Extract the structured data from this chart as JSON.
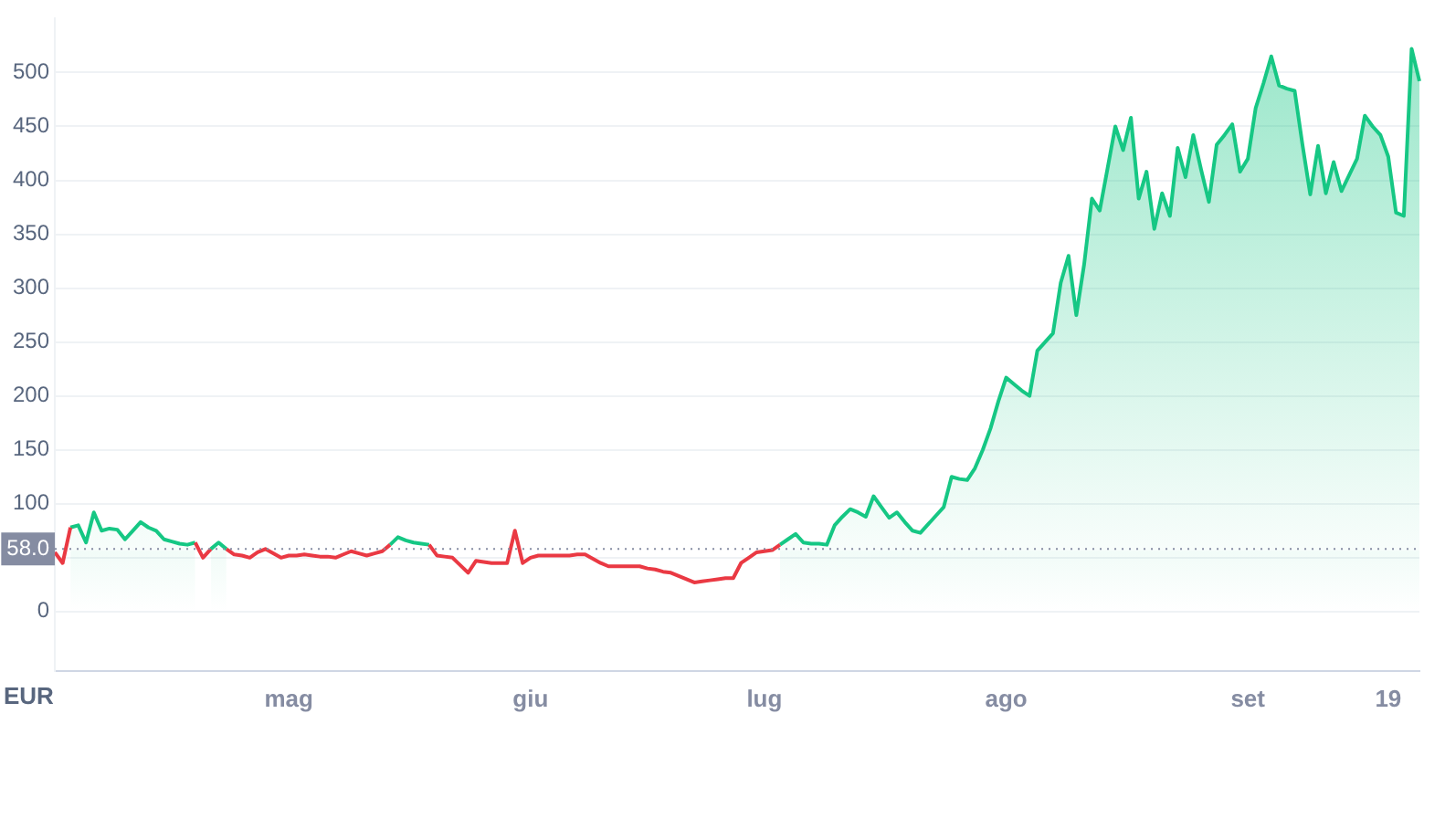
{
  "chart_data": {
    "type": "area",
    "xlabel": "EUR",
    "categories": [
      null,
      null,
      null,
      null,
      null,
      null,
      null,
      null,
      null,
      null,
      null,
      null,
      null,
      null,
      null,
      null,
      null,
      null,
      null,
      null,
      null,
      null,
      null,
      null,
      null,
      null,
      null,
      null,
      null,
      null,
      "mag",
      null,
      null,
      null,
      null,
      null,
      null,
      null,
      null,
      null,
      null,
      null,
      null,
      null,
      null,
      null,
      null,
      null,
      null,
      null,
      null,
      null,
      null,
      null,
      null,
      null,
      null,
      null,
      null,
      null,
      null,
      "giu",
      null,
      null,
      null,
      null,
      null,
      null,
      null,
      null,
      null,
      null,
      null,
      null,
      null,
      null,
      null,
      null,
      null,
      null,
      null,
      null,
      null,
      null,
      null,
      null,
      null,
      null,
      null,
      null,
      null,
      "lug",
      null,
      null,
      null,
      null,
      null,
      null,
      null,
      null,
      null,
      null,
      null,
      null,
      null,
      null,
      null,
      null,
      null,
      null,
      null,
      null,
      null,
      null,
      null,
      null,
      null,
      null,
      null,
      null,
      null,
      null,
      "ago",
      null,
      null,
      null,
      null,
      null,
      null,
      null,
      null,
      null,
      null,
      null,
      null,
      null,
      null,
      null,
      null,
      null,
      null,
      null,
      null,
      null,
      null,
      null,
      null,
      null,
      null,
      null,
      null,
      null,
      null,
      "set",
      null,
      null,
      null,
      null,
      null,
      null,
      null,
      null,
      null,
      null,
      null,
      null,
      null,
      null,
      null,
      null,
      null,
      "19",
      null,
      null,
      null,
      null
    ],
    "series": [
      {
        "color": "#16c784",
        "values": [
          null,
          null,
          78,
          80,
          64,
          92,
          75,
          77,
          76,
          67,
          75,
          83,
          78,
          75,
          67,
          65,
          63,
          62,
          64,
          null,
          null,
          null,
          null,
          null,
          null,
          null,
          null,
          null,
          null,
          null,
          null,
          null,
          null,
          null,
          null,
          null,
          null,
          null,
          null,
          null,
          null,
          null,
          null,
          null,
          null,
          null,
          null,
          null,
          null,
          null,
          null,
          null,
          null,
          null,
          null,
          null,
          null,
          null,
          null,
          null,
          null,
          null,
          null,
          null,
          null,
          null,
          null,
          null,
          null,
          null,
          null,
          null,
          null,
          null,
          null,
          null,
          null,
          null,
          null,
          null,
          null,
          null,
          null,
          null,
          null,
          null,
          null,
          null,
          null,
          null,
          null,
          null,
          null,
          null,
          null,
          null,
          null,
          null,
          null,
          null,
          null,
          null,
          null,
          null,
          null,
          null,
          null,
          null,
          null,
          null,
          null,
          null,
          null,
          null,
          null,
          null,
          null,
          null,
          null,
          null,
          null,
          null,
          null,
          null,
          null,
          null,
          null,
          null,
          null,
          null,
          null,
          null,
          null,
          null,
          null,
          null,
          null,
          null,
          null,
          null,
          null,
          null,
          null,
          null,
          null,
          null,
          null,
          null,
          null,
          null,
          null,
          null,
          null,
          null,
          null,
          null,
          null,
          null,
          null,
          null,
          null,
          null,
          null,
          null,
          null,
          null,
          null,
          null,
          null,
          null,
          null,
          null,
          null,
          null,
          null,
          null
        ]
      },
      {
        "color": "#16c784",
        "values": [
          null,
          null,
          null,
          null,
          null,
          null,
          null,
          null,
          null,
          null,
          null,
          null,
          null,
          null,
          null,
          null,
          null,
          null,
          null,
          null,
          58,
          64,
          58,
          null,
          null,
          null,
          null,
          null,
          null,
          null,
          null,
          null,
          null,
          null,
          null,
          null,
          null,
          null,
          null,
          null,
          null,
          null,
          null,
          null,
          null,
          null,
          null,
          null,
          null,
          null,
          null,
          null,
          null,
          null,
          null,
          null,
          null,
          null,
          null,
          null,
          null,
          null,
          null,
          null,
          null,
          null,
          null,
          null,
          null,
          null,
          null,
          null,
          null,
          null,
          null,
          null,
          null,
          null,
          null,
          null,
          null,
          null,
          null,
          null,
          null,
          null,
          null,
          null,
          null,
          null,
          null,
          null,
          null,
          null,
          null,
          null,
          null,
          null,
          null,
          null,
          null,
          null,
          null,
          null,
          null,
          null,
          null,
          null,
          null,
          null,
          null,
          null,
          null,
          null,
          null,
          null,
          null,
          null,
          null,
          null,
          null,
          null,
          null,
          null,
          null,
          null,
          null,
          null,
          null,
          null,
          null,
          null,
          null,
          null,
          null,
          null,
          null,
          null,
          null,
          null,
          null,
          null,
          null,
          null,
          null,
          null,
          null,
          null,
          null,
          null,
          null,
          null,
          null,
          null,
          null,
          null,
          null,
          null,
          null,
          null,
          null,
          null,
          null,
          null,
          null,
          null,
          null,
          null,
          null,
          null,
          null,
          null,
          null,
          null,
          null,
          null
        ]
      },
      {
        "type": "line",
        "color": "#16c784",
        "values": [
          null,
          null,
          null,
          null,
          null,
          null,
          null,
          null,
          null,
          null,
          null,
          null,
          null,
          null,
          null,
          null,
          null,
          null,
          null,
          null,
          null,
          null,
          null,
          null,
          null,
          null,
          null,
          null,
          null,
          null,
          null,
          null,
          null,
          null,
          null,
          null,
          null,
          null,
          null,
          null,
          null,
          null,
          null,
          62,
          69,
          66,
          64,
          63,
          62,
          null,
          null,
          null,
          null,
          null,
          null,
          null,
          null,
          null,
          null,
          null,
          null,
          null,
          null,
          null,
          null,
          null,
          null,
          null,
          null,
          null,
          null,
          null,
          null,
          null,
          null,
          null,
          null,
          null,
          null,
          null,
          null,
          null,
          null,
          null,
          null,
          null,
          null,
          null,
          null,
          null,
          null,
          null,
          null,
          null,
          null,
          null,
          null,
          null,
          null,
          null,
          null,
          null,
          null,
          null,
          null,
          null,
          null,
          null,
          null,
          null,
          null,
          null,
          null,
          null,
          null,
          null,
          null,
          null,
          null,
          null,
          null,
          null,
          null,
          null,
          null,
          null,
          null,
          null,
          null,
          null,
          null,
          null,
          null,
          null,
          null,
          null,
          null,
          null,
          null,
          null,
          null,
          null,
          null,
          null,
          null,
          null,
          null,
          null,
          null,
          null,
          null,
          null,
          null,
          null,
          null,
          null,
          null,
          null,
          null,
          null,
          null,
          null,
          null,
          null,
          null,
          null,
          null,
          null,
          null,
          null,
          null,
          null,
          null,
          null,
          null,
          null
        ]
      },
      {
        "color": "#16c784",
        "values": [
          null,
          null,
          null,
          null,
          null,
          null,
          null,
          null,
          null,
          null,
          null,
          null,
          null,
          null,
          null,
          null,
          null,
          null,
          null,
          null,
          null,
          null,
          null,
          null,
          null,
          null,
          null,
          null,
          null,
          null,
          null,
          null,
          null,
          null,
          null,
          null,
          null,
          null,
          null,
          null,
          null,
          null,
          null,
          null,
          null,
          null,
          null,
          null,
          null,
          null,
          null,
          null,
          null,
          null,
          null,
          null,
          null,
          null,
          null,
          null,
          null,
          null,
          null,
          null,
          null,
          null,
          null,
          null,
          null,
          null,
          null,
          null,
          null,
          null,
          null,
          null,
          null,
          null,
          null,
          null,
          null,
          null,
          null,
          null,
          null,
          null,
          null,
          null,
          null,
          null,
          null,
          null,
          null,
          62,
          67,
          72,
          64,
          63,
          63,
          62,
          80,
          88,
          95,
          92,
          88,
          107,
          97,
          87,
          92,
          83,
          75,
          73,
          81,
          89,
          97,
          125,
          123,
          122,
          133,
          150,
          170,
          195,
          217,
          211,
          205,
          200,
          242,
          250,
          258,
          305,
          330,
          275,
          322,
          383,
          372,
          411,
          450,
          428,
          458,
          383,
          408,
          355,
          388,
          367,
          430,
          403,
          442,
          410,
          380,
          433,
          442,
          452,
          408,
          420,
          467,
          490,
          515,
          488,
          485,
          483,
          433,
          387,
          432,
          388,
          417,
          390,
          405,
          420,
          460,
          450,
          442,
          422,
          370,
          367,
          522,
          492
        ]
      },
      {
        "type": "line",
        "color": "#ea3943",
        "values": [
          55,
          45,
          78,
          null,
          null,
          null,
          null,
          null,
          null,
          null,
          null,
          null,
          null,
          null,
          null,
          null,
          null,
          null,
          null,
          null,
          null,
          null,
          null,
          null,
          null,
          null,
          null,
          null,
          null,
          null,
          null,
          null,
          null,
          null,
          null,
          null,
          null,
          null,
          null,
          null,
          null,
          null,
          null,
          null,
          null,
          null,
          null,
          null,
          null,
          null,
          null,
          null,
          null,
          null,
          null,
          null,
          null,
          null,
          null,
          null,
          null,
          null,
          null,
          null,
          null,
          null,
          null,
          null,
          null,
          null,
          null,
          null,
          null,
          null,
          null,
          null,
          null,
          null,
          null,
          null,
          null,
          null,
          null,
          null,
          null,
          null,
          null,
          null,
          null,
          null,
          null,
          null,
          null,
          null,
          null,
          null,
          null,
          null,
          null,
          null,
          null,
          null,
          null,
          null,
          null,
          null,
          null,
          null,
          null,
          null,
          null,
          null,
          null,
          null,
          null,
          null,
          null,
          null,
          null,
          null,
          null,
          null,
          null,
          null,
          null,
          null,
          null,
          null,
          null,
          null,
          null,
          null,
          null,
          null,
          null,
          null,
          null,
          null,
          null,
          null,
          null,
          null,
          null,
          null,
          null,
          null,
          null,
          null,
          null,
          null,
          null,
          null,
          null,
          null,
          null,
          null,
          null,
          null,
          null,
          null,
          null,
          null,
          null,
          null,
          null,
          null,
          null,
          null,
          null,
          null,
          null,
          null,
          null,
          null,
          null,
          null
        ]
      },
      {
        "type": "line",
        "color": "#ea3943",
        "values": [
          null,
          null,
          null,
          null,
          null,
          null,
          null,
          null,
          null,
          null,
          null,
          null,
          null,
          null,
          null,
          null,
          null,
          null,
          64,
          50,
          58,
          null,
          null,
          null,
          null,
          null,
          null,
          null,
          null,
          null,
          null,
          null,
          null,
          null,
          null,
          null,
          null,
          null,
          null,
          null,
          null,
          null,
          null,
          null,
          null,
          null,
          null,
          null,
          null,
          null,
          null,
          null,
          null,
          null,
          null,
          null,
          null,
          null,
          null,
          null,
          null,
          null,
          null,
          null,
          null,
          null,
          null,
          null,
          null,
          null,
          null,
          null,
          null,
          null,
          null,
          null,
          null,
          null,
          null,
          null,
          null,
          null,
          null,
          null,
          null,
          null,
          null,
          null,
          null,
          null,
          null,
          null,
          null,
          null,
          null,
          null,
          null,
          null,
          null,
          null,
          null,
          null,
          null,
          null,
          null,
          null,
          null,
          null,
          null,
          null,
          null,
          null,
          null,
          null,
          null,
          null,
          null,
          null,
          null,
          null,
          null,
          null,
          null,
          null,
          null,
          null,
          null,
          null,
          null,
          null,
          null,
          null,
          null,
          null,
          null,
          null,
          null,
          null,
          null,
          null,
          null,
          null,
          null,
          null,
          null,
          null,
          null,
          null,
          null,
          null,
          null,
          null,
          null,
          null,
          null,
          null,
          null,
          null,
          null,
          null,
          null,
          null,
          null,
          null,
          null,
          null,
          null,
          null,
          null,
          null,
          null,
          null,
          null,
          null,
          null,
          null
        ]
      },
      {
        "type": "line",
        "color": "#ea3943",
        "values": [
          null,
          null,
          null,
          null,
          null,
          null,
          null,
          null,
          null,
          null,
          null,
          null,
          null,
          null,
          null,
          null,
          null,
          null,
          null,
          null,
          null,
          null,
          58,
          53,
          52,
          50,
          55,
          58,
          54,
          50,
          52,
          52,
          53,
          52,
          51,
          51,
          50,
          53,
          56,
          54,
          52,
          54,
          56,
          62,
          null,
          null,
          null,
          null,
          null,
          null,
          null,
          null,
          null,
          null,
          null,
          null,
          null,
          null,
          null,
          null,
          null,
          null,
          null,
          null,
          null,
          null,
          null,
          null,
          null,
          null,
          null,
          null,
          null,
          null,
          null,
          null,
          null,
          null,
          null,
          null,
          null,
          null,
          null,
          null,
          null,
          null,
          null,
          null,
          null,
          null,
          null,
          null,
          null,
          null,
          null,
          null,
          null,
          null,
          null,
          null,
          null,
          null,
          null,
          null,
          null,
          null,
          null,
          null,
          null,
          null,
          null,
          null,
          null,
          null,
          null,
          null,
          null,
          null,
          null,
          null,
          null,
          null,
          null,
          null,
          null,
          null,
          null,
          null,
          null,
          null,
          null,
          null,
          null,
          null,
          null,
          null,
          null,
          null,
          null,
          null,
          null,
          null,
          null,
          null,
          null,
          null,
          null,
          null,
          null,
          null,
          null,
          null,
          null,
          null,
          null,
          null,
          null,
          null,
          null,
          null,
          null,
          null,
          null,
          null,
          null,
          null,
          null,
          null,
          null,
          null,
          null,
          null,
          null,
          null,
          null,
          null
        ]
      },
      {
        "type": "line",
        "color": "#ea3943",
        "values": [
          null,
          null,
          null,
          null,
          null,
          null,
          null,
          null,
          null,
          null,
          null,
          null,
          null,
          null,
          null,
          null,
          null,
          null,
          null,
          null,
          null,
          null,
          null,
          null,
          null,
          null,
          null,
          null,
          null,
          null,
          null,
          null,
          null,
          null,
          null,
          null,
          null,
          null,
          null,
          null,
          null,
          null,
          null,
          null,
          null,
          null,
          null,
          null,
          62,
          52,
          51,
          50,
          43,
          36,
          47,
          46,
          45,
          45,
          45,
          75,
          45,
          50,
          52,
          52,
          52,
          52,
          52,
          53,
          53,
          49,
          45,
          42,
          42,
          42,
          42,
          42,
          40,
          39,
          37,
          36,
          33,
          30,
          27,
          28,
          29,
          30,
          31,
          31,
          45,
          50,
          55,
          56,
          57,
          62,
          null,
          null,
          null,
          null,
          null,
          null,
          null,
          null,
          null,
          null,
          null,
          null,
          null,
          null,
          null,
          null,
          null,
          null,
          null,
          null,
          null,
          null,
          null,
          null,
          null,
          null,
          null,
          null,
          null,
          null,
          null,
          null,
          null,
          null,
          null,
          null,
          null,
          null,
          null,
          null,
          null,
          null,
          null,
          null,
          null,
          null,
          null,
          null,
          null,
          null,
          null,
          null,
          null,
          null,
          null,
          null,
          null,
          null,
          null,
          null,
          null,
          null,
          null,
          null,
          null,
          null,
          null,
          null,
          null,
          null,
          null,
          null,
          null,
          null,
          null,
          null,
          null,
          null,
          null,
          null,
          null,
          null
        ]
      }
    ],
    "ylim": [
      -55,
      550
    ],
    "yticks": [
      0,
      {
        "value": 50,
        "label": null
      },
      100,
      150,
      200,
      250,
      300,
      350,
      400,
      450,
      500
    ],
    "ref_lines": [
      {
        "axis": "y",
        "value": 58,
        "label": "58.0",
        "color": "#858ca2",
        "line_style": "dotted"
      }
    ],
    "grid": "y",
    "legend": false,
    "marker": "none",
    "line_style": "solid"
  }
}
